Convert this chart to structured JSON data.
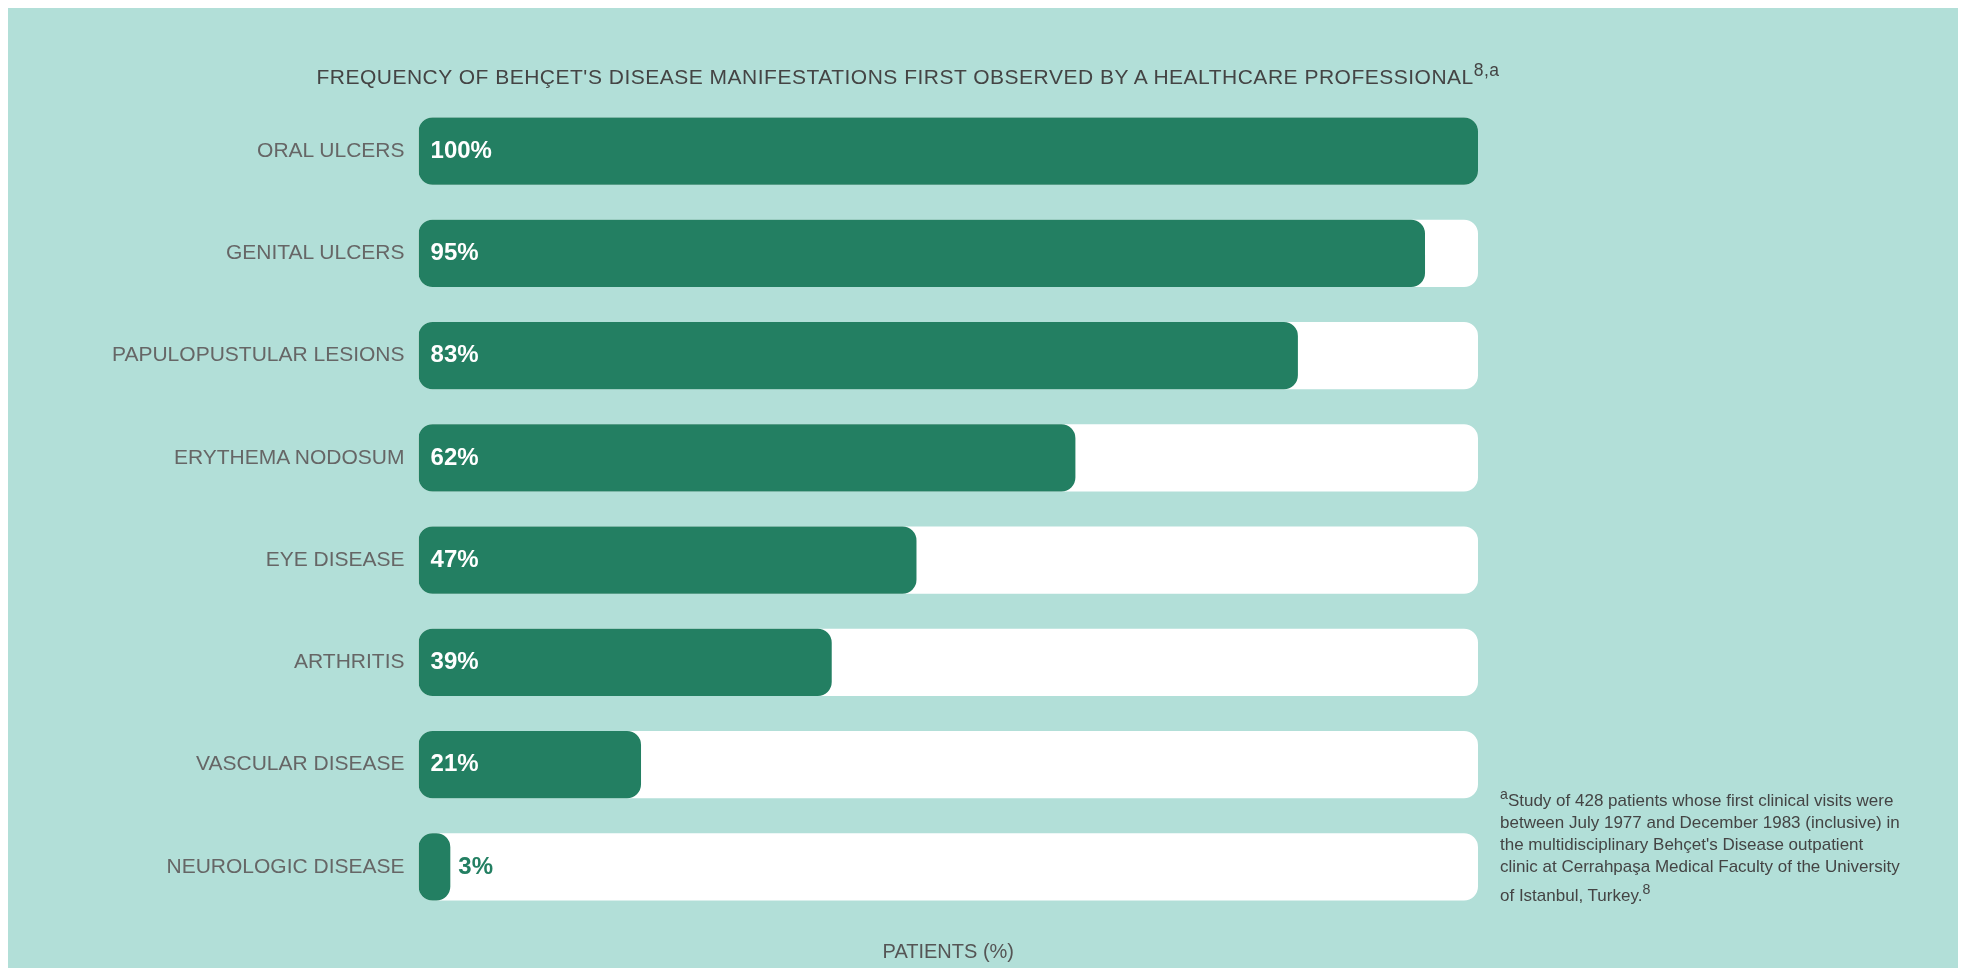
{
  "chart_data": {
    "type": "bar",
    "orientation": "horizontal",
    "title": "FREQUENCY OF BEHÇET'S DISEASE MANIFESTATIONS FIRST OBSERVED BY A HEALTHCARE PROFESSIONAL$^{8,a}$",
    "xlabel": "PATIENTS (%)",
    "categories": [
      "ORAL ULCERS",
      "GENITAL ULCERS",
      "PAPULOPUSTULAR LESIONS",
      "ERYTHEMA NODOSUM",
      "EYE DISEASE",
      "ARTHRITIS",
      "VASCULAR DISEASE",
      "NEUROLOGIC DISEASE"
    ],
    "values": [
      100,
      95,
      83,
      62,
      47,
      39,
      21,
      3
    ],
    "value_labels": [
      "100%",
      "95%",
      "83%",
      "62%",
      "47%",
      "39%",
      "21%",
      "3%"
    ],
    "color": "#237f62",
    "xlim": [
      0,
      100
    ],
    "tick_labels": "y",
    "grid": false,
    "legend": false,
    "annotations": [
      "$^{a}$Study of 428 patients whose first clinical visits were between July 1977 and December 1983 (inclusive) in the multidisciplinary Behçet's Disease outpatient clinic at Cerrahpaşa Medical Faculty of the University of Istanbul, Turkey.$^{8}$"
    ]
  }
}
